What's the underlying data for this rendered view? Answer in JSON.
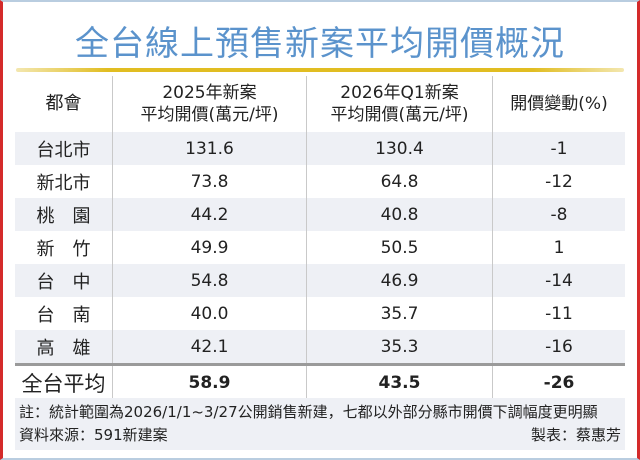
{
  "title": "全台線上預售新案平均開價概況",
  "chart_data": {
    "type": "table",
    "title": "全台線上預售新案平均開價概況",
    "columns": [
      "都會",
      "2025年新案\n平均開價(萬元/坪)",
      "2026年Q1新案\n平均開價(萬元/坪)",
      "開價變動(%)"
    ],
    "rows": [
      {
        "city": "台北市",
        "v2025": "131.6",
        "v2026": "130.4",
        "change": "-1"
      },
      {
        "city": "新北市",
        "v2025": "73.8",
        "v2026": "64.8",
        "change": "-12"
      },
      {
        "city": "桃　園",
        "v2025": "44.2",
        "v2026": "40.8",
        "change": "-8"
      },
      {
        "city": "新　竹",
        "v2025": "49.9",
        "v2026": "50.5",
        "change": "1"
      },
      {
        "city": "台　中",
        "v2025": "54.8",
        "v2026": "46.9",
        "change": "-14"
      },
      {
        "city": "台　南",
        "v2025": "40.0",
        "v2026": "35.7",
        "change": "-11"
      },
      {
        "city": "高　雄",
        "v2025": "42.1",
        "v2026": "35.3",
        "change": "-16"
      }
    ],
    "total": {
      "city": "全台平均",
      "v2025": "58.9",
      "v2026": "43.5",
      "change": "-26"
    }
  },
  "header": {
    "col0": "都會",
    "col1a": "2025年新案",
    "col1b": "平均開價(萬元/坪)",
    "col2a": "2026年Q1新案",
    "col2b": "平均開價(萬元/坪)",
    "col3": "開價變動(%)"
  },
  "notes": {
    "note": "註：統計範圍為2026/1/1~3/27公開銷售新建，七都以外部分縣市開價下調幅度更明顯",
    "source": "資料來源：591新建案",
    "author": "製表：蔡惠芳"
  },
  "colors": {
    "title": "#5b93cc",
    "accent_line": "#e1bd22",
    "stripe": "#eef0f5"
  }
}
